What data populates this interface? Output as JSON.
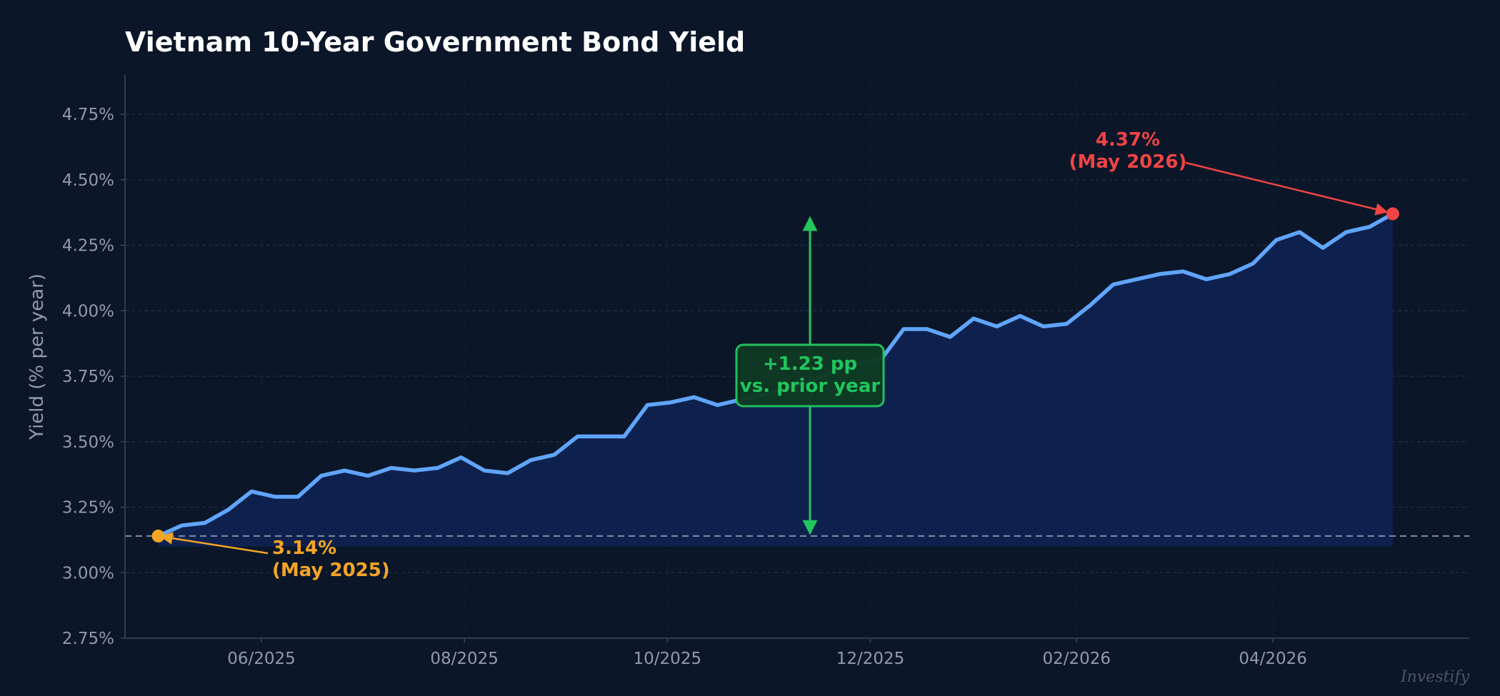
{
  "chart_data": {
    "type": "line",
    "title": "Vietnam 10-Year Government Bond Yield",
    "ylabel": "Yield (% per year)",
    "xlabel": "",
    "ylim": [
      2.75,
      4.9
    ],
    "y_ticks": [
      2.75,
      3.0,
      3.25,
      3.5,
      3.75,
      4.0,
      4.25,
      4.5,
      4.75
    ],
    "y_tick_labels": [
      "2.75%",
      "3.00%",
      "3.25%",
      "3.50%",
      "3.75%",
      "4.00%",
      "4.25%",
      "4.50%",
      "4.75%"
    ],
    "x_tick_labels": [
      "06/2025",
      "08/2025",
      "10/2025",
      "12/2025",
      "02/2026",
      "04/2026"
    ],
    "x_tick_dates": [
      "2025-06-01",
      "2025-08-01",
      "2025-10-01",
      "2025-12-01",
      "2026-02-01",
      "2026-04-01"
    ],
    "xlim": [
      "2025-04-21",
      "2026-05-30"
    ],
    "grid": true,
    "series": [
      {
        "color": "#60a5fa",
        "x": [
          "2025-05-01",
          "2025-05-08",
          "2025-05-15",
          "2025-05-22",
          "2025-05-29",
          "2025-06-05",
          "2025-06-12",
          "2025-06-19",
          "2025-06-26",
          "2025-07-03",
          "2025-07-10",
          "2025-07-17",
          "2025-07-24",
          "2025-07-31",
          "2025-08-07",
          "2025-08-14",
          "2025-08-21",
          "2025-08-28",
          "2025-09-04",
          "2025-09-11",
          "2025-09-18",
          "2025-09-25",
          "2025-10-02",
          "2025-10-09",
          "2025-10-16",
          "2025-10-23",
          "2025-10-30",
          "2025-11-06",
          "2025-11-13",
          "2025-11-20",
          "2025-11-27",
          "2025-12-04",
          "2025-12-11",
          "2025-12-18",
          "2025-12-25",
          "2026-01-01",
          "2026-01-08",
          "2026-01-15",
          "2026-01-22",
          "2026-01-29",
          "2026-02-05",
          "2026-02-12",
          "2026-02-19",
          "2026-02-26",
          "2026-03-05",
          "2026-03-12",
          "2026-03-19",
          "2026-03-26",
          "2026-04-02",
          "2026-04-09",
          "2026-04-16",
          "2026-04-23",
          "2026-04-30",
          "2026-05-07"
        ],
        "values": [
          3.14,
          3.18,
          3.19,
          3.24,
          3.31,
          3.29,
          3.29,
          3.37,
          3.39,
          3.37,
          3.4,
          3.39,
          3.4,
          3.44,
          3.39,
          3.38,
          3.43,
          3.45,
          3.52,
          3.52,
          3.52,
          3.64,
          3.65,
          3.67,
          3.64,
          3.66,
          3.68,
          3.7,
          3.73,
          3.77,
          3.8,
          3.81,
          3.93,
          3.93,
          3.9,
          3.97,
          3.94,
          3.98,
          3.94,
          3.95,
          4.02,
          4.1,
          4.12,
          4.14,
          4.15,
          4.12,
          4.14,
          4.18,
          4.27,
          4.3,
          4.24,
          4.3,
          4.32,
          4.37
        ]
      }
    ],
    "reference_line": {
      "y": 3.14,
      "style": "dashed"
    },
    "annotations": {
      "start_label": [
        "3.14%",
        "(May 2025)"
      ],
      "end_label": [
        "4.37%",
        "(May 2026)"
      ],
      "change_label": [
        "+1.23 pp",
        "vs. prior year"
      ]
    },
    "colors": {
      "background": "#0b1628",
      "line": "#60a5fa",
      "area": "#0f2250",
      "start": "#f5a524",
      "end": "#ef4444",
      "change": "#22c55e",
      "change_box": "#0f3a24"
    },
    "watermark": "Investify"
  }
}
